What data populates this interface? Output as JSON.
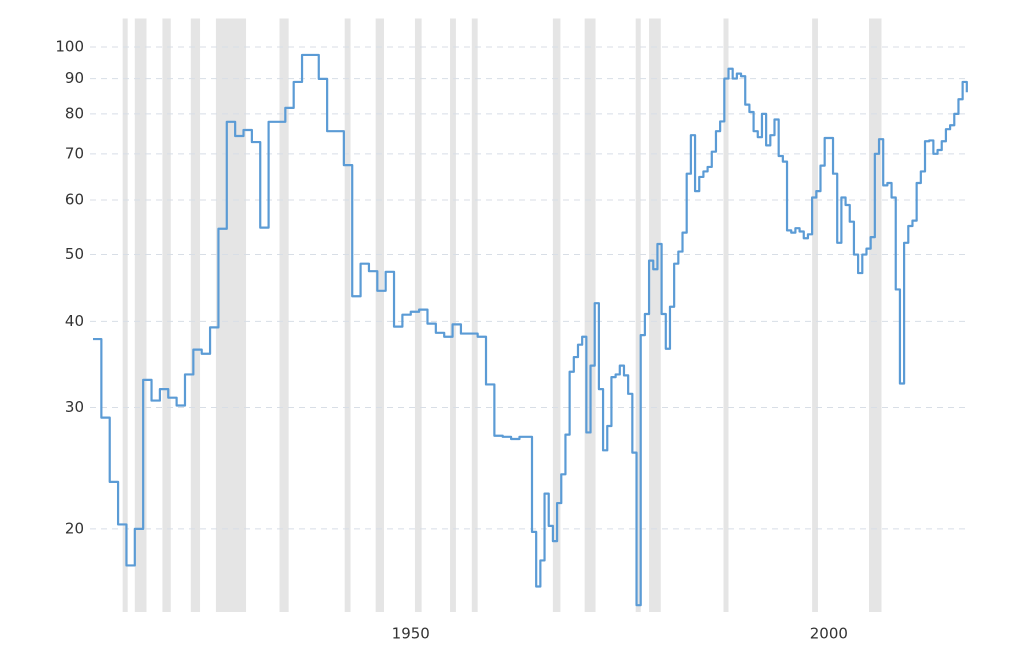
{
  "chart_data": {
    "type": "line",
    "yscale": "log",
    "step": "post",
    "grid": true,
    "xlim": [
      1912,
      2017
    ],
    "xticks": [
      1950,
      2000
    ],
    "ylim": [
      15,
      110
    ],
    "yticks": [
      20,
      30,
      40,
      50,
      60,
      70,
      80,
      90,
      100
    ],
    "shaded_ranges": [
      [
        1915.55,
        1916.15
      ],
      [
        1917.0,
        1918.4
      ],
      [
        1920.3,
        1921.3
      ],
      [
        1923.7,
        1924.8
      ],
      [
        1926.7,
        1930.3
      ],
      [
        1934.3,
        1935.4
      ],
      [
        1942.1,
        1942.8
      ],
      [
        1945.8,
        1946.8
      ],
      [
        1950.5,
        1951.3
      ],
      [
        1954.7,
        1955.4
      ],
      [
        1957.3,
        1958.0
      ],
      [
        1967.0,
        1967.9
      ],
      [
        1970.8,
        1972.1
      ],
      [
        1976.9,
        1977.5
      ],
      [
        1978.5,
        1979.9
      ],
      [
        1987.4,
        1988.0
      ],
      [
        1998.0,
        1998.7
      ],
      [
        2004.8,
        2006.3
      ]
    ],
    "shade_color": "#e5e5e5",
    "series": [
      {
        "color": "#5b9bd5",
        "x": [
          1912,
          1913,
          1914,
          1915,
          1916,
          1917,
          1918,
          1919,
          1920,
          1921,
          1922,
          1923,
          1924,
          1925,
          1926,
          1927,
          1928,
          1929,
          1930,
          1931,
          1932,
          1933,
          1934,
          1935,
          1936,
          1937,
          1938,
          1939,
          1940,
          1941,
          1942,
          1943,
          1944,
          1945,
          1946,
          1947,
          1948,
          1949,
          1950,
          1951,
          1952,
          1953,
          1954,
          1955,
          1956,
          1957,
          1958,
          1959,
          1960,
          1961,
          1962,
          1963,
          1964.0,
          1964.5,
          1965.0,
          1965.5,
          1966.0,
          1966.5,
          1967.0,
          1967.5,
          1968.0,
          1968.5,
          1969.0,
          1969.5,
          1970.0,
          1970.5,
          1971.0,
          1971.5,
          1972.0,
          1972.5,
          1973.0,
          1973.5,
          1974.0,
          1974.5,
          1975.0,
          1975.5,
          1976.0,
          1976.5,
          1977.0,
          1977.5,
          1978.0,
          1978.5,
          1979.0,
          1979.5,
          1980.0,
          1980.5,
          1981.0,
          1981.5,
          1982.0,
          1982.5,
          1983.0,
          1983.5,
          1984.0,
          1984.5,
          1985.0,
          1985.5,
          1986.0,
          1986.5,
          1987.0,
          1987.5,
          1988.0,
          1988.5,
          1989.0,
          1989.5,
          1990.0,
          1990.5,
          1991.0,
          1991.5,
          1992.0,
          1992.5,
          1993.0,
          1993.5,
          1994.0,
          1994.5,
          1995.0,
          1995.5,
          1996.0,
          1996.5,
          1997.0,
          1997.5,
          1998.0,
          1998.5,
          1999.0,
          1999.5,
          2000.0,
          2000.5,
          2001.0,
          2001.5,
          2002.0,
          2002.5,
          2003.0,
          2003.5,
          2004.0,
          2004.5,
          2005.0,
          2005.5,
          2006.0,
          2006.5,
          2007.0,
          2007.5,
          2008.0,
          2008.5,
          2009.0,
          2009.5,
          2010.0,
          2010.5,
          2011.0,
          2011.5,
          2012.0,
          2012.5,
          2013.0,
          2013.5,
          2014.0,
          2014.5,
          2015.0,
          2015.5,
          2016.0,
          2016.5
        ],
        "values": [
          37.7,
          29.0,
          23.4,
          20.3,
          17.7,
          20.0,
          32.9,
          30.7,
          31.9,
          31.0,
          30.2,
          33.5,
          36.4,
          35.9,
          39.2,
          54.5,
          77.9,
          74.3,
          75.8,
          72.8,
          54.7,
          77.9,
          77.9,
          81.6,
          89.0,
          97.4,
          97.4,
          89.9,
          75.5,
          75.5,
          67.4,
          43.5,
          48.5,
          47.3,
          44.3,
          47.2,
          39.3,
          40.9,
          41.3,
          41.6,
          39.7,
          38.5,
          38.0,
          39.6,
          38.4,
          38.4,
          38.0,
          32.4,
          27.3,
          27.2,
          27.0,
          27.2,
          27.2,
          19.8,
          16.5,
          18.0,
          22.5,
          20.2,
          19.2,
          21.8,
          24.0,
          27.4,
          33.8,
          35.5,
          37.0,
          38.0,
          27.6,
          34.5,
          42.5,
          31.9,
          26.0,
          28.2,
          33.2,
          33.5,
          34.5,
          33.4,
          31.4,
          25.8,
          15.5,
          38.2,
          41.0,
          49.0,
          47.6,
          51.8,
          41.0,
          36.5,
          42.0,
          48.5,
          50.5,
          53.8,
          65.5,
          74.5,
          61.8,
          64.8,
          66.0,
          67.0,
          70.5,
          75.5,
          78.0,
          90.0,
          93.0,
          90.0,
          91.5,
          90.7,
          82.5,
          80.5,
          75.5,
          74.0,
          80.0,
          72.0,
          74.5,
          78.5,
          69.5,
          68.2,
          54.2,
          53.8,
          54.6,
          54.0,
          52.8,
          53.5,
          60.5,
          61.8,
          67.3,
          73.8,
          73.8,
          65.5,
          52.0,
          60.5,
          59.0,
          55.8,
          50.0,
          47.0,
          50.0,
          51.0,
          53.0,
          70.0,
          73.5,
          63.0,
          63.5,
          60.5,
          44.5,
          32.5,
          52.0,
          55.0,
          56.0,
          63.5,
          66.0,
          73.0,
          73.2,
          70.0,
          70.9,
          73.0,
          76.0,
          77.0,
          80.0,
          84.0,
          89.0,
          86.0
        ]
      }
    ]
  }
}
